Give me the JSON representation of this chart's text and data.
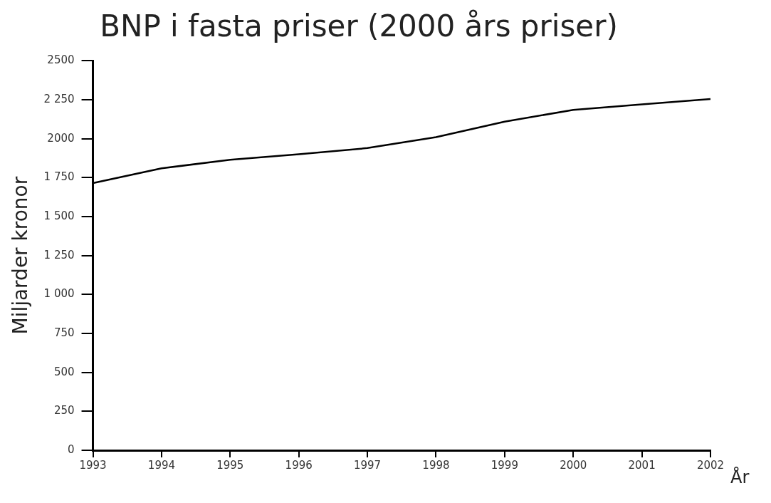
{
  "chart_data": {
    "type": "line",
    "title": "BNP i fasta priser (2000 års priser)",
    "xlabel": "År",
    "ylabel": "Miljarder kronor",
    "x": [
      1993,
      1994,
      1995,
      1996,
      1997,
      1998,
      1999,
      2000,
      2001,
      2002
    ],
    "series": [
      {
        "color": "#000000",
        "values": [
          1715,
          1810,
          1865,
          1900,
          1940,
          2010,
          2110,
          2185,
          2220,
          2255
        ]
      }
    ],
    "xlim": [
      1993,
      2002
    ],
    "xticks": [
      1993,
      1994,
      1995,
      1996,
      1997,
      1998,
      1999,
      2000,
      2001,
      2002
    ],
    "ylim": [
      0,
      2500
    ],
    "yticks": [
      {
        "value": 0,
        "label": "0"
      },
      {
        "value": 250,
        "label": "250"
      },
      {
        "value": 500,
        "label": "500"
      },
      {
        "value": 750,
        "label": "750"
      },
      {
        "value": 1000,
        "label": "1 000"
      },
      {
        "value": 1250,
        "label": "1 250"
      },
      {
        "value": 1500,
        "label": "1 500"
      },
      {
        "value": 1750,
        "label": "1 750"
      },
      {
        "value": 2000,
        "label": "2000"
      },
      {
        "value": 2250,
        "label": "2 250"
      },
      {
        "value": 2500,
        "label": "2500"
      }
    ],
    "grid": false,
    "legend": false,
    "marker": "none",
    "line_style": "solid"
  }
}
